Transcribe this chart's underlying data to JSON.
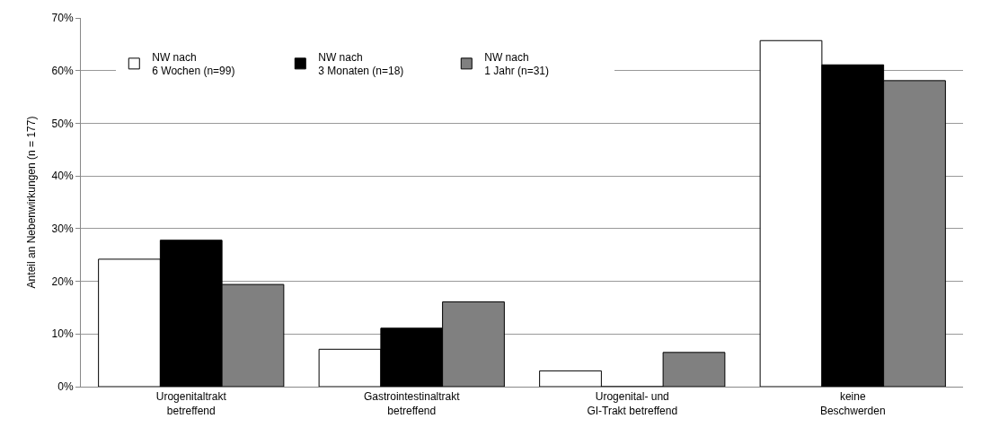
{
  "chart_data": {
    "type": "bar",
    "ylabel": "Anteil an Nebenwirkungen (n = 177)",
    "categories": [
      "Urogenitaltrakt\nbetreffend",
      "Gastrointestinaltrakt\nbetreffend",
      "Urogenital- und\nGI-Trakt betreffend",
      "keine\nBeschwerden"
    ],
    "series": [
      {
        "name": "NW nach\n6 Wochen (n=99)",
        "color": "#ffffff",
        "values": [
          24.2,
          7.1,
          3.0,
          65.7
        ]
      },
      {
        "name": "NW nach\n3 Monaten (n=18)",
        "color": "#000000",
        "values": [
          27.8,
          11.1,
          0,
          61.1
        ]
      },
      {
        "name": "NW nach\n1 Jahr (n=31)",
        "color": "#808080",
        "values": [
          19.4,
          16.1,
          6.5,
          58.1
        ]
      }
    ],
    "ylim": [
      0,
      70
    ],
    "yticks": [
      {
        "value": 0,
        "label": "0%"
      },
      {
        "value": 10,
        "label": "10%"
      },
      {
        "value": 20,
        "label": "20%"
      },
      {
        "value": 30,
        "label": "30%"
      },
      {
        "value": 40,
        "label": "40%"
      },
      {
        "value": 50,
        "label": "50%"
      },
      {
        "value": 60,
        "label": "60%"
      },
      {
        "value": 70,
        "label": "70%"
      }
    ],
    "grid": "y",
    "legend": "top left"
  }
}
